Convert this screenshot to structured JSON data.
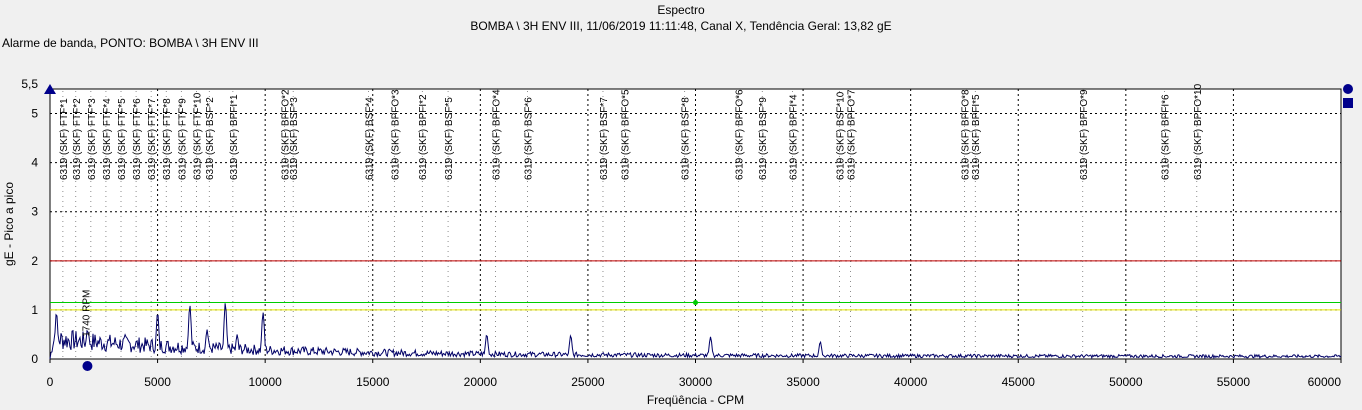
{
  "colors": {
    "background": "#f0f0f0",
    "plot_bg": "#ffffff",
    "spectrum": "#000066",
    "alarm_red": "#c00000",
    "alarm_green": "#00cc00",
    "alarm_yellow": "#e6e600",
    "marker_blue": "#00008b"
  },
  "chart_data": {
    "type": "line",
    "title": "Espectro",
    "subtitle": "BOMBA \\ 3H ENV III, 11/06/2019 11:11:48, Canal X, Tendência Geral: 13,82 gE",
    "band_alarm_label": "Alarme de banda, PONTO: BOMBA \\ 3H ENV III",
    "xlabel": "Freqüência - CPM",
    "ylabel": "gE - Pico a pico",
    "xlim": [
      0,
      60000
    ],
    "ylim": [
      0,
      5.5
    ],
    "x_ticks": [
      "0",
      "5000",
      "10000",
      "15000",
      "20000",
      "25000",
      "30000",
      "35000",
      "40000",
      "45000",
      "50000",
      "55000",
      "60000"
    ],
    "x_tick_values": [
      0,
      5000,
      10000,
      15000,
      20000,
      25000,
      30000,
      35000,
      40000,
      45000,
      50000,
      55000,
      60000
    ],
    "y_ticks": [
      "0",
      "1",
      "2",
      "3",
      "4",
      "5"
    ],
    "y_tick_values": [
      0,
      1,
      2,
      3,
      4,
      5
    ],
    "y_max_label": "5,5",
    "grid": true,
    "alarm_lines": [
      {
        "value": 2.0,
        "color": "#c00000"
      },
      {
        "value": 1.15,
        "color": "#00cc00"
      },
      {
        "value": 1.0,
        "color": "#e6e600"
      }
    ],
    "rpm_marker": {
      "x": 1740,
      "label": "1740 RPM"
    },
    "cursor_point": {
      "x": 30000,
      "y": 1.15
    },
    "fault_frequencies": [
      {
        "x": 600,
        "label": "6319 (SKF) FTF*1"
      },
      {
        "x": 1200,
        "label": "6319 (SKF) FTF*2"
      },
      {
        "x": 1900,
        "label": "6319 (SKF) FTF*3"
      },
      {
        "x": 2600,
        "label": "6319 (SKF) FTF*4"
      },
      {
        "x": 3300,
        "label": "6319 (SKF) FTF*5"
      },
      {
        "x": 4000,
        "label": "6319 (SKF) FTF*6"
      },
      {
        "x": 4700,
        "label": "6319 (SKF) FTF*7"
      },
      {
        "x": 5400,
        "label": "6319 (SKF) FTF*8"
      },
      {
        "x": 6100,
        "label": "6319 (SKF) FTF*9"
      },
      {
        "x": 6800,
        "label": "6319 (SKF) FTF*10"
      },
      {
        "x": 7400,
        "label": "6319 (SKF) BSF*2"
      },
      {
        "x": 8500,
        "label": "6319 (SKF) BPFI*1"
      },
      {
        "x": 10900,
        "label": "6319 (SKF) BPFO*2"
      },
      {
        "x": 11300,
        "label": "6319 (SKF) BSF*3"
      },
      {
        "x": 14800,
        "label": "6319 (SKF) BSF*4"
      },
      {
        "x": 16000,
        "label": "6319 (SKF) BPFO*3"
      },
      {
        "x": 17300,
        "label": "6319 (SKF) BPFI*2"
      },
      {
        "x": 18500,
        "label": "6319 (SKF) BSF*5"
      },
      {
        "x": 20700,
        "label": "6319 (SKF) BPFO*4"
      },
      {
        "x": 22200,
        "label": "6319 (SKF) BSF*6"
      },
      {
        "x": 25700,
        "label": "6319 (SKF) BSF*7"
      },
      {
        "x": 26700,
        "label": "6319 (SKF) BPFO*5"
      },
      {
        "x": 29500,
        "label": "6319 (SKF) BSF*8"
      },
      {
        "x": 32000,
        "label": "6319 (SKF) BPFO*6"
      },
      {
        "x": 33100,
        "label": "6319 (SKF) BSF*9"
      },
      {
        "x": 34500,
        "label": "6319 (SKF) BPFI*4"
      },
      {
        "x": 36700,
        "label": "6319 (SKF) BSF*10"
      },
      {
        "x": 37200,
        "label": "6319 (SKF) BPFO*7"
      },
      {
        "x": 42500,
        "label": "6319 (SKF) BPFO*8"
      },
      {
        "x": 43000,
        "label": "6319 (SKF) BPFI*5"
      },
      {
        "x": 48000,
        "label": "6319 (SKF) BPFO*9"
      },
      {
        "x": 51800,
        "label": "6319 (SKF) BPFI*6"
      },
      {
        "x": 53300,
        "label": "6319 (SKF) BPFO*10"
      }
    ],
    "peaks": [
      {
        "x": 300,
        "y": 0.95
      },
      {
        "x": 1740,
        "y": 0.6
      },
      {
        "x": 3480,
        "y": 0.5
      },
      {
        "x": 5000,
        "y": 0.95
      },
      {
        "x": 6500,
        "y": 1.1
      },
      {
        "x": 7300,
        "y": 0.6
      },
      {
        "x": 8150,
        "y": 1.15
      },
      {
        "x": 8700,
        "y": 0.5
      },
      {
        "x": 9900,
        "y": 0.95
      },
      {
        "x": 20300,
        "y": 0.5
      },
      {
        "x": 24200,
        "y": 0.48
      },
      {
        "x": 30700,
        "y": 0.45
      },
      {
        "x": 35800,
        "y": 0.35
      }
    ]
  }
}
